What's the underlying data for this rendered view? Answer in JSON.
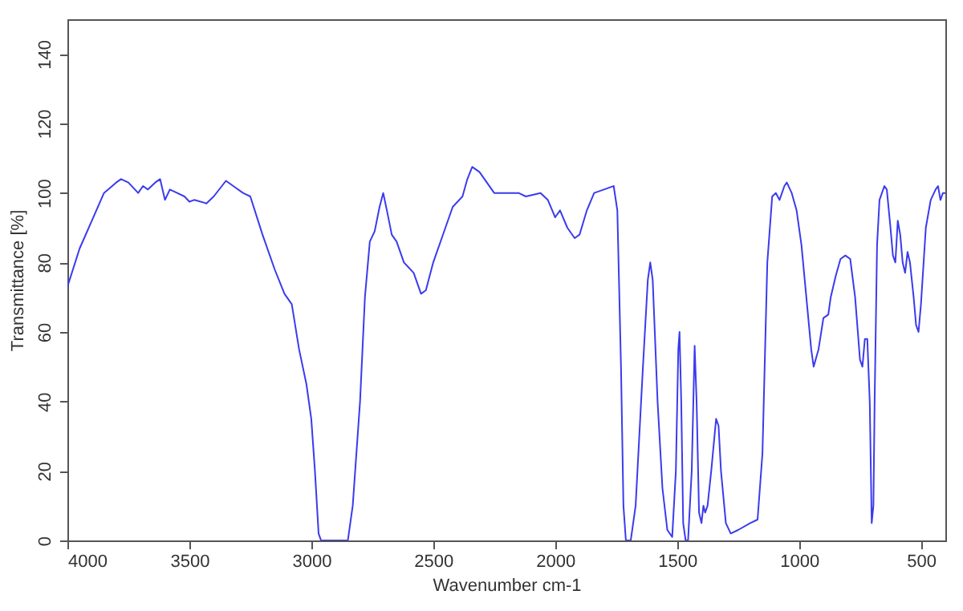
{
  "chart_data": {
    "type": "line",
    "xlabel": "Wavenumber cm-1",
    "ylabel": "Transmittance [%]",
    "xlim": [
      4000,
      400
    ],
    "ylim": [
      0,
      150
    ],
    "xticks": [
      4000,
      3500,
      3000,
      2500,
      2000,
      1500,
      1000,
      500
    ],
    "yticks": [
      0,
      20,
      40,
      60,
      80,
      100,
      120,
      140
    ],
    "grid": false,
    "series": [
      {
        "color": "#3b3bee",
        "x": [
          4000,
          3950,
          3900,
          3850,
          3800,
          3780,
          3750,
          3710,
          3690,
          3670,
          3640,
          3620,
          3600,
          3580,
          3550,
          3520,
          3500,
          3480,
          3430,
          3400,
          3350,
          3320,
          3280,
          3250,
          3200,
          3150,
          3110,
          3080,
          3050,
          3020,
          3000,
          2985,
          2970,
          2960,
          2850,
          2830,
          2800,
          2780,
          2760,
          2740,
          2720,
          2705,
          2690,
          2670,
          2650,
          2620,
          2580,
          2550,
          2530,
          2500,
          2450,
          2420,
          2380,
          2360,
          2340,
          2310,
          2280,
          2250,
          2150,
          2120,
          2060,
          2030,
          2000,
          1980,
          1950,
          1920,
          1900,
          1870,
          1840,
          1800,
          1760,
          1745,
          1730,
          1720,
          1710,
          1690,
          1670,
          1640,
          1620,
          1610,
          1600,
          1580,
          1560,
          1540,
          1520,
          1505,
          1495,
          1490,
          1483,
          1475,
          1465,
          1455,
          1440,
          1428,
          1420,
          1410,
          1400,
          1392,
          1385,
          1375,
          1360,
          1340,
          1330,
          1320,
          1300,
          1280,
          1250,
          1200,
          1170,
          1150,
          1130,
          1110,
          1095,
          1080,
          1060,
          1050,
          1030,
          1010,
          990,
          970,
          950,
          940,
          920,
          900,
          880,
          870,
          850,
          830,
          810,
          790,
          770,
          750,
          740,
          730,
          720,
          710,
          702,
          695,
          690,
          680,
          670,
          650,
          640,
          625,
          615,
          605,
          595,
          585,
          575,
          565,
          555,
          545,
          530,
          520,
          510,
          500,
          480,
          460,
          440,
          430,
          420,
          410,
          400
        ],
        "values": [
          73,
          84,
          92,
          100,
          103,
          104,
          103,
          100,
          102,
          101,
          103,
          104,
          98,
          101,
          100,
          99,
          97.5,
          98,
          97,
          99,
          103.5,
          102,
          100,
          99,
          88,
          78,
          71,
          68,
          55,
          45,
          35,
          20,
          2,
          0,
          0,
          10,
          40,
          70,
          86,
          89,
          96,
          100,
          95,
          88,
          86,
          80,
          77,
          71,
          72,
          80,
          90,
          96,
          99,
          104,
          107.5,
          106,
          103,
          100,
          100,
          99,
          100,
          98,
          93,
          95,
          90,
          87,
          88,
          95,
          100,
          101,
          102,
          95,
          50,
          10,
          0,
          0,
          10,
          50,
          75,
          80,
          75,
          40,
          15,
          3,
          1,
          20,
          55,
          60,
          40,
          5,
          0,
          0,
          20,
          56,
          40,
          8,
          5,
          10,
          8,
          10,
          20,
          35,
          33,
          20,
          5,
          2,
          3,
          5,
          6,
          25,
          80,
          99,
          100,
          98,
          102,
          103,
          100,
          95,
          85,
          70,
          55,
          50,
          55,
          64,
          65,
          70,
          76,
          81,
          82,
          81,
          70,
          52,
          50,
          58,
          58,
          40,
          5,
          10,
          40,
          85,
          98,
          102,
          101,
          90,
          82,
          80,
          92,
          88,
          80,
          77,
          83,
          80,
          70,
          62,
          60,
          68,
          90,
          98,
          101,
          102,
          98,
          100,
          100
        ]
      }
    ]
  }
}
